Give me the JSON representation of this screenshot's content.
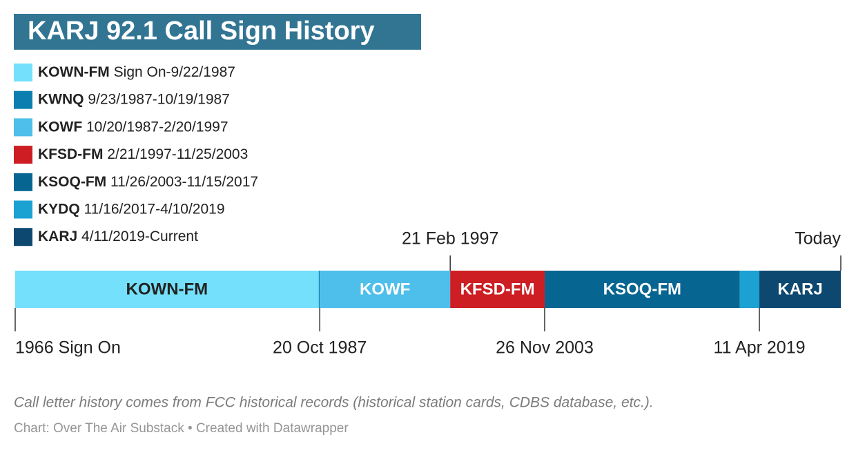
{
  "chart_data": {
    "type": "timeline",
    "title": "KARJ 92.1 Call Sign History",
    "series": [
      {
        "name": "KOWN-FM",
        "range": "Sign On-9/22/1987",
        "color": "#74e0fb",
        "start": 1966,
        "end": 1987.73
      },
      {
        "name": "KWNQ",
        "range": "9/23/1987-10/19/1987",
        "color": "#0c7fb0",
        "start": 1987.73,
        "end": 1987.8
      },
      {
        "name": "KOWF",
        "range": "10/20/1987-2/20/1997",
        "color": "#4ebfea",
        "start": 1987.8,
        "end": 1997.14
      },
      {
        "name": "KFSD-FM",
        "range": "2/21/1997-11/25/2003",
        "color": "#cc1e23",
        "start": 1997.14,
        "end": 2003.9
      },
      {
        "name": "KSOQ-FM",
        "range": "11/26/2003-11/15/2017",
        "color": "#076591",
        "start": 2003.9,
        "end": 2017.87
      },
      {
        "name": "KYDQ",
        "range": "11/16/2017-4/10/2019",
        "color": "#1ca1d3",
        "start": 2017.87,
        "end": 2019.27
      },
      {
        "name": "KARJ",
        "range": "4/11/2019-Current",
        "color": "#0d4870",
        "start": 2019.27,
        "end": 2025.1
      }
    ],
    "xlim": [
      1966,
      2025.1
    ],
    "xticks": [
      {
        "value": 1966,
        "label": "1966 Sign On",
        "side": "bottom"
      },
      {
        "value": 1987.8,
        "label": "20 Oct 1987",
        "side": "bottom"
      },
      {
        "value": 1997.14,
        "label": "21 Feb 1997",
        "side": "top"
      },
      {
        "value": 2003.9,
        "label": "26 Nov 2003",
        "side": "bottom"
      },
      {
        "value": 2019.27,
        "label": "11 Apr 2019",
        "side": "bottom"
      },
      {
        "value": 2025.1,
        "label": "Today",
        "side": "top"
      }
    ],
    "notes": "Call letter history comes from FCC historical records (historical station cards, CDBS database, etc.).",
    "source": "Chart: Over The Air Substack • Created with Datawrapper"
  }
}
